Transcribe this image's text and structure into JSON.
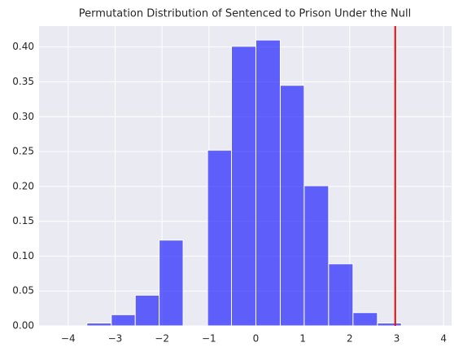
{
  "chart_data": {
    "type": "histogram",
    "title": "Permutation Distribution of Sentenced to Prison Under the Null",
    "bins": [
      -3.6,
      -3.08,
      -2.57,
      -2.06,
      -1.55,
      -1.03,
      -0.52,
      0.0,
      0.52,
      1.03,
      1.55,
      2.07,
      2.59,
      3.1
    ],
    "values": [
      0.004,
      0.016,
      0.044,
      0.123,
      0,
      0.252,
      0.401,
      0.41,
      0.345,
      0.201,
      0.089,
      0.019,
      0.004
    ],
    "color": "#0000ff",
    "alpha": 0.6,
    "vline": {
      "x": 2.97,
      "color": "#ff0000"
    },
    "xlim": [
      -4.62,
      4.17
    ],
    "xticks": [
      {
        "value": -4,
        "label": "−4"
      },
      {
        "value": -3,
        "label": "−3"
      },
      {
        "value": -2,
        "label": "−2"
      },
      {
        "value": -1,
        "label": "−1"
      },
      0,
      1,
      2,
      3,
      4
    ],
    "ylim": [
      0,
      0.43
    ],
    "yticks": [
      {
        "value": 0,
        "label": "0.00"
      },
      0.05,
      {
        "value": 0.1,
        "label": "0.10"
      },
      0.15,
      {
        "value": 0.2,
        "label": "0.20"
      },
      0.25,
      {
        "value": 0.3,
        "label": "0.30"
      },
      0.35,
      {
        "value": 0.4,
        "label": "0.40"
      }
    ],
    "grid": true
  }
}
